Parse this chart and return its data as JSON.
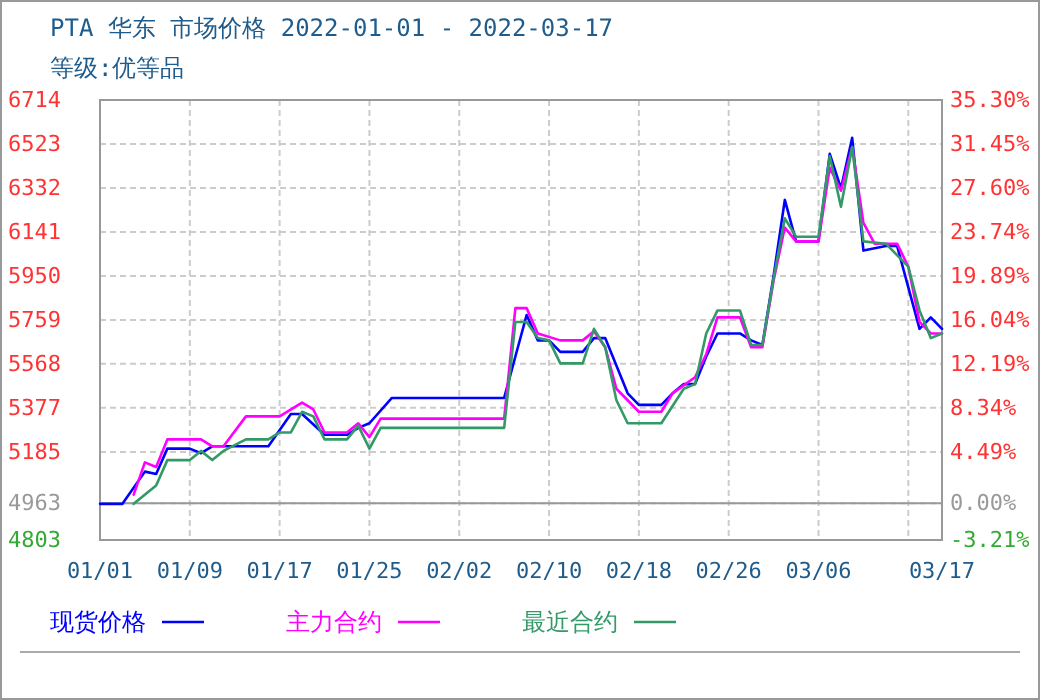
{
  "chart_data": {
    "type": "line",
    "title": "PTA 华东 市场价格 2022-01-01 - 2022-03-17",
    "subtitle": "等级:优等品",
    "xlim": [
      "2022-01-01",
      "2022-03-17"
    ],
    "xticks": [
      {
        "value": "2022-01-01",
        "label": "01/01"
      },
      {
        "value": "2022-01-09",
        "label": "01/09"
      },
      {
        "value": "2022-01-17",
        "label": "01/17"
      },
      {
        "value": "2022-01-25",
        "label": "01/25"
      },
      {
        "value": "2022-02-02",
        "label": "02/02"
      },
      {
        "value": "2022-02-10",
        "label": "02/10"
      },
      {
        "value": "2022-02-18",
        "label": "02/18"
      },
      {
        "value": "2022-02-26",
        "label": "02/26"
      },
      {
        "value": "2022-03-06",
        "label": "03/06"
      },
      {
        "value": "2022-03-14",
        "label": null
      },
      {
        "value": "2022-03-17",
        "label": "03/17"
      }
    ],
    "ylim": [
      4803,
      6714
    ],
    "yticks": [
      4803,
      4963,
      5185,
      5377,
      5568,
      5759,
      5950,
      6141,
      6332,
      6523,
      6714
    ],
    "y2lim": [
      -3.21,
      35.3
    ],
    "y2ticks": [
      {
        "value": -3.21,
        "label": "-3.21%"
      },
      {
        "value": 0,
        "label": "0.00%"
      },
      {
        "value": 4.49,
        "label": "4.49%"
      },
      {
        "value": 8.34,
        "label": "8.34%"
      },
      {
        "value": 12.19,
        "label": "12.19%"
      },
      {
        "value": 16.04,
        "label": "16.04%"
      },
      {
        "value": 19.89,
        "label": "19.89%"
      },
      {
        "value": 23.74,
        "label": "23.74%"
      },
      {
        "value": 27.6,
        "label": "27.60%"
      },
      {
        "value": 31.45,
        "label": "31.45%"
      },
      {
        "value": 35.3,
        "label": "35.30%"
      }
    ],
    "ref_lines": [
      {
        "axis": "y2",
        "value": 0,
        "color": "#999999"
      }
    ],
    "grid": true,
    "legend": "bottom",
    "marker": "none",
    "line_style": "solid",
    "series": [
      {
        "name": "现货价格",
        "color": "#0000ff",
        "x": [
          "2022-01-01",
          "2022-01-03",
          "2022-01-05",
          "2022-01-06",
          "2022-01-07",
          "2022-01-09",
          "2022-01-10",
          "2022-01-11",
          "2022-01-16",
          "2022-01-18",
          "2022-01-19",
          "2022-01-21",
          "2022-01-23",
          "2022-01-24",
          "2022-01-25",
          "2022-01-27",
          "2022-02-06",
          "2022-02-07",
          "2022-02-08",
          "2022-02-09",
          "2022-02-10",
          "2022-02-11",
          "2022-02-13",
          "2022-02-14",
          "2022-02-15",
          "2022-02-17",
          "2022-02-18",
          "2022-02-20",
          "2022-02-21",
          "2022-02-22",
          "2022-02-23",
          "2022-02-24",
          "2022-02-25",
          "2022-02-27",
          "2022-02-28",
          "2022-03-01",
          "2022-03-02",
          "2022-03-03",
          "2022-03-04",
          "2022-03-05",
          "2022-03-06",
          "2022-03-07",
          "2022-03-08",
          "2022-03-09",
          "2022-03-10",
          "2022-03-11",
          "2022-03-12",
          "2022-03-13",
          "2022-03-14",
          "2022-03-15",
          "2022-03-16",
          "2022-03-17"
        ],
        "values": [
          4960,
          4960,
          5100,
          5090,
          5200,
          5200,
          5180,
          5210,
          5210,
          5350,
          5350,
          5260,
          5260,
          5290,
          5310,
          5420,
          5420,
          5600,
          5780,
          5670,
          5670,
          5620,
          5620,
          5680,
          5680,
          5440,
          5390,
          5390,
          5440,
          5480,
          5480,
          5600,
          5700,
          5700,
          5670,
          5650,
          5950,
          6280,
          6100,
          6100,
          6100,
          6480,
          6330,
          6550,
          6060,
          6070,
          6080,
          6080,
          5900,
          5720,
          5770,
          5720
        ]
      },
      {
        "name": "主力合约",
        "color": "#ff00ff",
        "x": [
          "2022-01-04",
          "2022-01-05",
          "2022-01-06",
          "2022-01-07",
          "2022-01-10",
          "2022-01-11",
          "2022-01-12",
          "2022-01-14",
          "2022-01-17",
          "2022-01-19",
          "2022-01-20",
          "2022-01-21",
          "2022-01-23",
          "2022-01-24",
          "2022-01-25",
          "2022-01-26",
          "2022-02-06",
          "2022-02-07",
          "2022-02-08",
          "2022-02-09",
          "2022-02-11",
          "2022-02-13",
          "2022-02-14",
          "2022-02-15",
          "2022-02-16",
          "2022-02-18",
          "2022-02-20",
          "2022-02-21",
          "2022-02-23",
          "2022-02-24",
          "2022-02-25",
          "2022-02-27",
          "2022-02-28",
          "2022-03-01",
          "2022-03-02",
          "2022-03-03",
          "2022-03-04",
          "2022-03-06",
          "2022-03-07",
          "2022-03-08",
          "2022-03-09",
          "2022-03-10",
          "2022-03-11",
          "2022-03-13",
          "2022-03-14",
          "2022-03-15",
          "2022-03-16",
          "2022-03-17"
        ],
        "values": [
          5000,
          5140,
          5120,
          5240,
          5240,
          5210,
          5210,
          5340,
          5340,
          5400,
          5370,
          5270,
          5270,
          5310,
          5250,
          5330,
          5330,
          5810,
          5810,
          5700,
          5670,
          5670,
          5710,
          5640,
          5460,
          5360,
          5360,
          5440,
          5510,
          5610,
          5770,
          5770,
          5640,
          5640,
          5930,
          6160,
          6100,
          6100,
          6420,
          6320,
          6510,
          6180,
          6090,
          6090,
          5990,
          5750,
          5700,
          5700
        ]
      },
      {
        "name": "最近合约",
        "color": "#339966",
        "x": [
          "2022-01-04",
          "2022-01-06",
          "2022-01-07",
          "2022-01-09",
          "2022-01-10",
          "2022-01-11",
          "2022-01-12",
          "2022-01-14",
          "2022-01-16",
          "2022-01-17",
          "2022-01-18",
          "2022-01-19",
          "2022-01-20",
          "2022-01-21",
          "2022-01-23",
          "2022-01-24",
          "2022-01-25",
          "2022-01-26",
          "2022-02-06",
          "2022-02-07",
          "2022-02-08",
          "2022-02-09",
          "2022-02-10",
          "2022-02-11",
          "2022-02-13",
          "2022-02-14",
          "2022-02-15",
          "2022-02-16",
          "2022-02-17",
          "2022-02-20",
          "2022-02-22",
          "2022-02-23",
          "2022-02-24",
          "2022-02-25",
          "2022-02-27",
          "2022-02-28",
          "2022-03-01",
          "2022-03-02",
          "2022-03-03",
          "2022-03-04",
          "2022-03-06",
          "2022-03-07",
          "2022-03-08",
          "2022-03-09",
          "2022-03-10",
          "2022-03-12",
          "2022-03-14",
          "2022-03-15",
          "2022-03-16",
          "2022-03-17"
        ],
        "values": [
          4960,
          5040,
          5150,
          5150,
          5190,
          5150,
          5190,
          5240,
          5240,
          5270,
          5270,
          5360,
          5340,
          5240,
          5240,
          5300,
          5200,
          5290,
          5290,
          5750,
          5750,
          5680,
          5670,
          5570,
          5570,
          5720,
          5640,
          5410,
          5310,
          5310,
          5460,
          5480,
          5700,
          5800,
          5800,
          5650,
          5650,
          5940,
          6200,
          6120,
          6120,
          6470,
          6250,
          6510,
          6100,
          6090,
          5990,
          5800,
          5680,
          5700
        ]
      }
    ]
  }
}
